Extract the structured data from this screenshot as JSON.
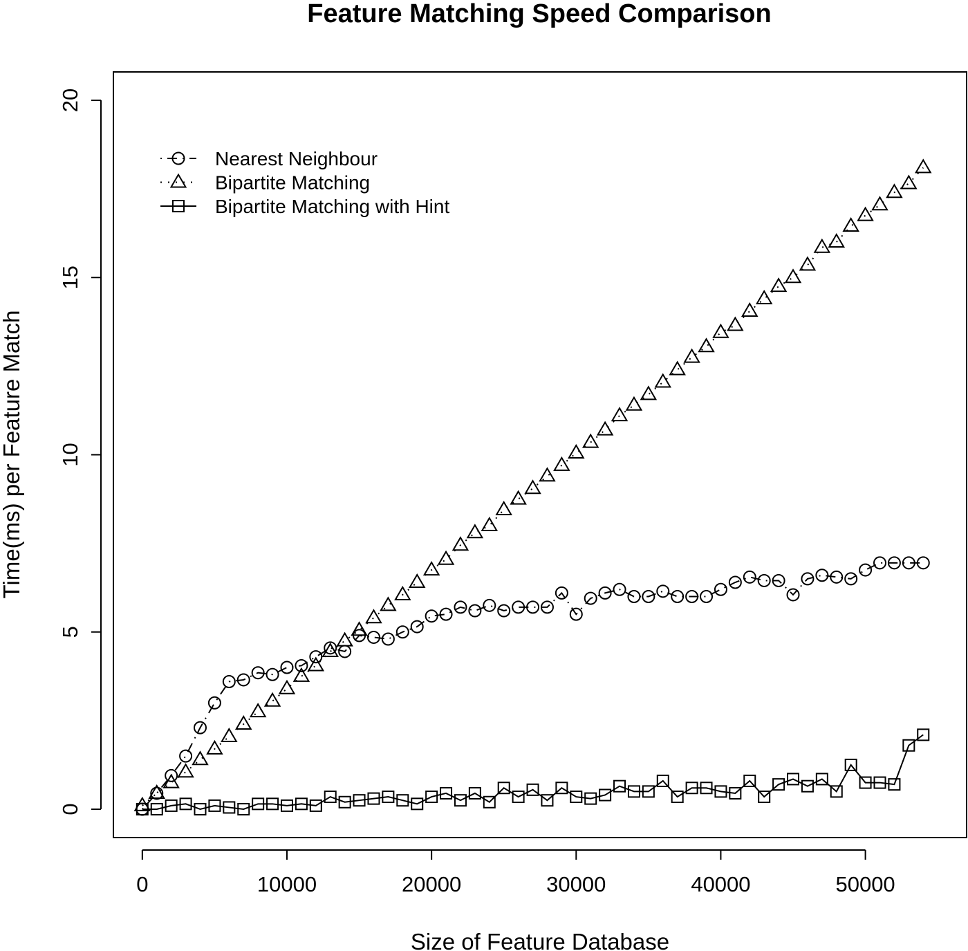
{
  "chart_data": {
    "type": "line",
    "title": "Feature Matching Speed Comparison",
    "xlabel": "Size of Feature Database",
    "ylabel": "Time(ms) per Feature Match",
    "xlim": [
      -2000,
      57000
    ],
    "ylim": [
      -0.8,
      20.8
    ],
    "x_ticks": [
      0,
      10000,
      20000,
      30000,
      40000,
      50000
    ],
    "y_ticks": [
      0,
      5,
      10,
      15,
      20
    ],
    "grid": false,
    "legend_position": "top-left",
    "x": [
      0,
      1000,
      2000,
      3000,
      4000,
      5000,
      6000,
      7000,
      8000,
      9000,
      10000,
      11000,
      12000,
      13000,
      14000,
      15000,
      16000,
      17000,
      18000,
      19000,
      20000,
      21000,
      22000,
      23000,
      24000,
      25000,
      26000,
      27000,
      28000,
      29000,
      30000,
      31000,
      32000,
      33000,
      34000,
      35000,
      36000,
      37000,
      38000,
      39000,
      40000,
      41000,
      42000,
      43000,
      44000,
      45000,
      46000,
      47000,
      48000,
      49000,
      50000,
      51000,
      52000,
      53000,
      54000
    ],
    "series": [
      {
        "name": "Nearest Neighbour",
        "line_style": "dashdot",
        "marker": "circle",
        "values": [
          0.0,
          0.45,
          0.95,
          1.5,
          2.3,
          3.0,
          3.6,
          3.65,
          3.85,
          3.8,
          4.0,
          4.05,
          4.3,
          4.55,
          4.45,
          4.9,
          4.85,
          4.8,
          5.0,
          5.15,
          5.45,
          5.5,
          5.7,
          5.6,
          5.75,
          5.6,
          5.7,
          5.7,
          5.7,
          6.1,
          5.5,
          5.95,
          6.1,
          6.2,
          6.0,
          6.0,
          6.15,
          6.0,
          6.0,
          6.0,
          6.2,
          6.4,
          6.55,
          6.45,
          6.45,
          6.05,
          6.5,
          6.6,
          6.55,
          6.5,
          6.75,
          6.95,
          6.95,
          6.95,
          6.95
        ]
      },
      {
        "name": "Bipartite Matching",
        "line_style": "dotted",
        "marker": "triangle",
        "values": [
          0.1,
          0.45,
          0.75,
          1.05,
          1.4,
          1.7,
          2.05,
          2.4,
          2.75,
          3.05,
          3.4,
          3.75,
          4.05,
          4.45,
          4.75,
          5.05,
          5.4,
          5.75,
          6.05,
          6.4,
          6.75,
          7.05,
          7.45,
          7.8,
          8.0,
          8.45,
          8.75,
          9.05,
          9.4,
          9.7,
          10.05,
          10.35,
          10.7,
          11.1,
          11.4,
          11.7,
          12.05,
          12.4,
          12.75,
          13.05,
          13.45,
          13.65,
          14.05,
          14.4,
          14.75,
          15.0,
          15.35,
          15.85,
          16.0,
          16.45,
          16.75,
          17.05,
          17.4,
          17.65,
          18.1
        ]
      },
      {
        "name": "Bipartite Matching with Hint",
        "line_style": "solid",
        "marker": "square",
        "values": [
          0.0,
          0.0,
          0.1,
          0.15,
          0.0,
          0.1,
          0.05,
          0.0,
          0.15,
          0.15,
          0.1,
          0.15,
          0.1,
          0.35,
          0.2,
          0.25,
          0.3,
          0.35,
          0.25,
          0.15,
          0.35,
          0.45,
          0.25,
          0.45,
          0.2,
          0.6,
          0.35,
          0.55,
          0.25,
          0.6,
          0.35,
          0.3,
          0.4,
          0.65,
          0.5,
          0.5,
          0.8,
          0.35,
          0.6,
          0.6,
          0.5,
          0.45,
          0.8,
          0.35,
          0.7,
          0.85,
          0.65,
          0.85,
          0.5,
          1.25,
          0.75,
          0.75,
          0.7,
          1.8,
          2.1
        ]
      }
    ]
  }
}
